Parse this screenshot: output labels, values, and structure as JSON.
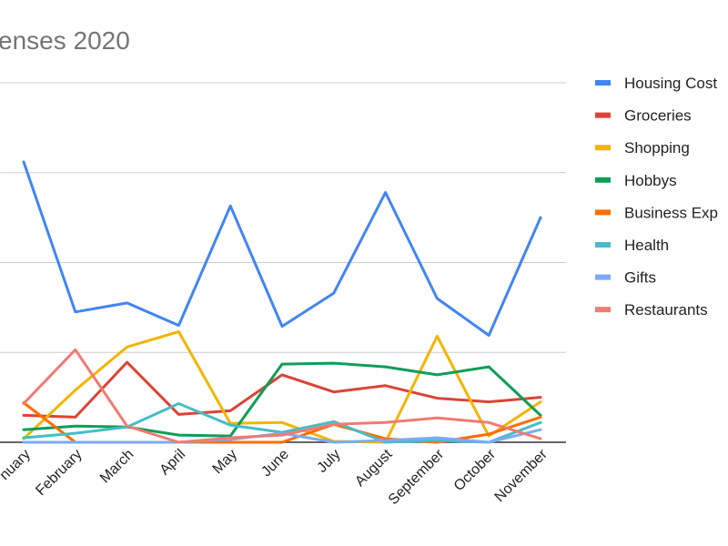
{
  "chart_data": {
    "type": "line",
    "title": "enses 2020",
    "xlabel": "",
    "ylabel": "",
    "categories": [
      "nuary",
      "February",
      "March",
      "April",
      "May",
      "June",
      "July",
      "August",
      "September",
      "October",
      "November"
    ],
    "ylim": [
      0,
      4
    ],
    "grid": true,
    "legend_position": "right",
    "series": [
      {
        "name": "Housing Cost",
        "color": "#4285f4",
        "values": [
          3.12,
          1.45,
          1.55,
          1.3,
          2.63,
          1.29,
          1.66,
          2.78,
          1.6,
          1.19,
          2.5
        ]
      },
      {
        "name": "Groceries",
        "color": "#db4437",
        "values": [
          0.3,
          0.28,
          0.89,
          0.31,
          0.35,
          0.75,
          0.56,
          0.63,
          0.49,
          0.45,
          0.5
        ]
      },
      {
        "name": "Shopping",
        "color": "#f4b400",
        "values": [
          0.04,
          0.58,
          1.06,
          1.23,
          0.21,
          0.22,
          0.01,
          0.0,
          1.18,
          0.07,
          0.45
        ]
      },
      {
        "name": "Hobbys",
        "color": "#0f9d58",
        "values": [
          0.14,
          0.18,
          0.17,
          0.08,
          0.07,
          0.87,
          0.88,
          0.84,
          0.75,
          0.84,
          0.3
        ]
      },
      {
        "name": "Business Exp",
        "color": "#ff6d01",
        "values": [
          0.44,
          0.0,
          0.0,
          0.0,
          0.0,
          0.0,
          0.2,
          0.04,
          0.0,
          0.09,
          0.28
        ]
      },
      {
        "name": "Health",
        "color": "#46bdc6",
        "values": [
          0.05,
          0.1,
          0.17,
          0.43,
          0.19,
          0.11,
          0.23,
          0.0,
          0.02,
          0.0,
          0.22
        ]
      },
      {
        "name": "Gifts",
        "color": "#7baaf7",
        "values": [
          0.0,
          0.0,
          0.0,
          0.0,
          0.03,
          0.1,
          0.0,
          0.02,
          0.05,
          0.0,
          0.14
        ]
      },
      {
        "name": "Restaurants",
        "color": "#f07b72",
        "values": [
          0.43,
          1.03,
          0.18,
          0.0,
          0.05,
          0.08,
          0.2,
          0.22,
          0.27,
          0.22,
          0.04
        ]
      }
    ]
  }
}
